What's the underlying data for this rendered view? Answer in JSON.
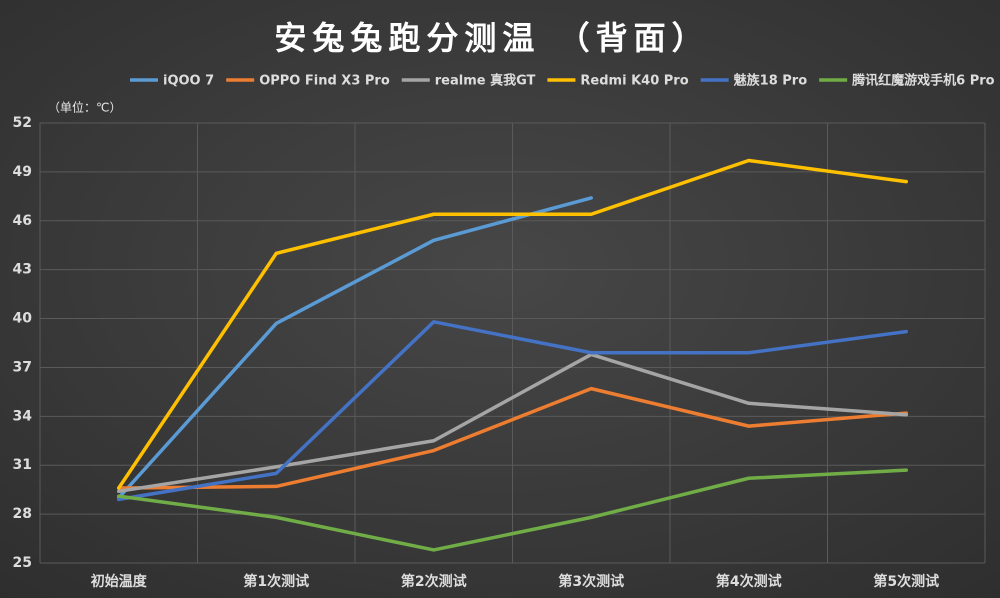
{
  "chart_data": {
    "type": "line",
    "title": "安兔兔跑分测温 （背面）",
    "unit_label": "（单位：℃）",
    "categories": [
      "初始温度",
      "第1次测试",
      "第2次测试",
      "第3次测试",
      "第4次测试",
      "第5次测试"
    ],
    "series": [
      {
        "name": "iQOO 7",
        "color": "#5b9bd5",
        "values": [
          29.0,
          39.7,
          44.8,
          47.4,
          null,
          null
        ]
      },
      {
        "name": "OPPO Find X3 Pro",
        "color": "#ed7d31",
        "values": [
          29.6,
          29.7,
          31.9,
          35.7,
          33.4,
          34.2
        ]
      },
      {
        "name": "realme 真我GT",
        "color": "#a5a5a5",
        "values": [
          29.4,
          30.9,
          32.5,
          37.8,
          34.8,
          34.1
        ]
      },
      {
        "name": "Redmi K40 Pro",
        "color": "#ffc000",
        "values": [
          29.6,
          44.0,
          46.4,
          46.4,
          49.7,
          48.4
        ]
      },
      {
        "name": "魅族18 Pro",
        "color": "#4472c4",
        "values": [
          28.9,
          30.5,
          39.8,
          37.9,
          37.9,
          39.2
        ]
      },
      {
        "name": "腾讯红魔游戏手机6 Pro",
        "color": "#70ad47",
        "values": [
          29.1,
          27.8,
          25.8,
          27.8,
          30.2,
          30.7
        ]
      }
    ],
    "ylim": [
      25,
      52
    ],
    "yticks": [
      25,
      28,
      31,
      34,
      37,
      40,
      43,
      46,
      49,
      52
    ],
    "grid": true
  }
}
